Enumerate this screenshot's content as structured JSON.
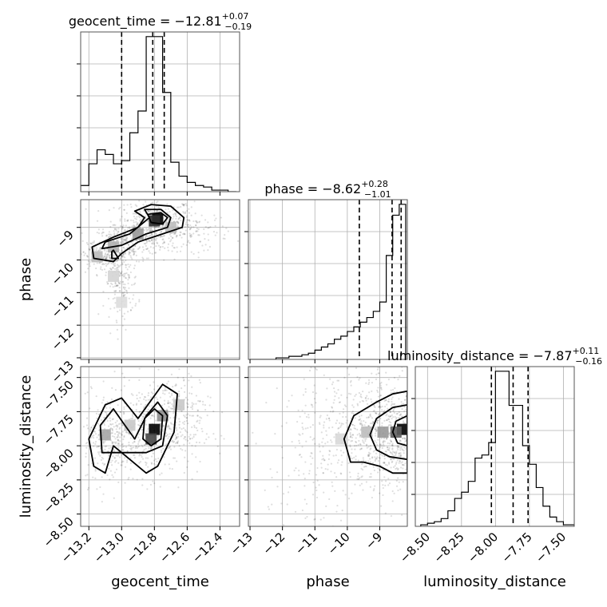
{
  "chart_data": {
    "type": "corner",
    "parameters": [
      "geocent_time",
      "phase",
      "luminosity_distance"
    ],
    "titles": [
      {
        "param": "geocent_time",
        "median": "−12.81",
        "plus": "+0.07",
        "minus": "−0.19"
      },
      {
        "param": "phase",
        "median": "−8.62",
        "plus": "+0.28",
        "minus": "−1.01"
      },
      {
        "param": "luminosity_distance",
        "median": "−7.87",
        "plus": "+0.11",
        "minus": "−0.16"
      }
    ],
    "ranges": {
      "geocent_time": [
        -13.25,
        -12.28
      ],
      "phase": [
        -13.05,
        -8.15
      ],
      "luminosity_distance": [
        -8.59,
        -7.42
      ]
    },
    "ticks": {
      "geocent_time": [
        "−13.2",
        "−13.0",
        "−12.8",
        "−12.6",
        "−12.4"
      ],
      "geocent_time_values": [
        -13.2,
        -13.0,
        -12.8,
        -12.6,
        -12.4
      ],
      "phase": [
        "−13",
        "−12",
        "−11",
        "−10",
        "−9"
      ],
      "phase_values": [
        -13,
        -12,
        -11,
        -10,
        -9
      ],
      "luminosity_distance": [
        "−8.50",
        "−8.25",
        "−8.00",
        "−7.75",
        "−7.50"
      ],
      "luminosity_distance_values": [
        -8.5,
        -8.25,
        -8.0,
        -7.75,
        -7.5
      ]
    },
    "quantile_lines": {
      "geocent_time": [
        -13.0,
        -12.81,
        -12.74
      ],
      "phase": [
        -9.63,
        -8.62,
        -8.34
      ],
      "luminosity_distance": [
        -8.03,
        -7.87,
        -7.76
      ]
    },
    "hist_1d": {
      "geocent_time": {
        "edges": [
          -13.25,
          -13.2,
          -13.15,
          -13.1,
          -13.05,
          -13.0,
          -12.95,
          -12.9,
          -12.85,
          -12.8,
          -12.75,
          -12.7,
          -12.65,
          -12.6,
          -12.55,
          -12.5,
          -12.45,
          -12.4,
          -12.35,
          -12.3
        ],
        "counts": [
          4,
          18,
          27,
          24,
          18,
          20,
          38,
          52,
          100,
          100,
          64,
          19,
          10,
          6,
          4,
          3,
          1,
          1,
          0
        ]
      },
      "phase": {
        "edges": [
          -13.0,
          -12.8,
          -12.6,
          -12.4,
          -12.2,
          -12.0,
          -11.8,
          -11.6,
          -11.4,
          -11.2,
          -11.0,
          -10.8,
          -10.6,
          -10.4,
          -10.2,
          -10.0,
          -9.8,
          -9.6,
          -9.4,
          -9.2,
          -9.0,
          -8.8,
          -8.6,
          -8.4,
          -8.2
        ],
        "counts": [
          0,
          0,
          0,
          0,
          1,
          1,
          2,
          2,
          3,
          4,
          6,
          8,
          10,
          13,
          15,
          18,
          21,
          24,
          27,
          31,
          37,
          67,
          93,
          100
        ]
      },
      "luminosity_distance": {
        "edges": [
          -8.55,
          -8.5,
          -8.45,
          -8.4,
          -8.35,
          -8.3,
          -8.25,
          -8.2,
          -8.15,
          -8.1,
          -8.05,
          -8.0,
          -7.95,
          -7.9,
          -7.85,
          -7.8,
          -7.75,
          -7.7,
          -7.65,
          -7.6,
          -7.55,
          -7.5,
          -7.45,
          -7.42
        ],
        "counts": [
          1,
          2,
          3,
          5,
          10,
          18,
          22,
          29,
          44,
          46,
          54,
          100,
          100,
          78,
          78,
          52,
          40,
          25,
          13,
          6,
          3,
          1,
          1
        ]
      }
    },
    "density_2d": {
      "phase_vs_geocent_time": [
        {
          "x": -12.78,
          "y": -8.75,
          "w": 1.0
        },
        {
          "x": -12.8,
          "y": -8.8,
          "w": 0.8
        },
        {
          "x": -12.9,
          "y": -9.2,
          "w": 0.35
        },
        {
          "x": -13.05,
          "y": -9.6,
          "w": 0.25
        },
        {
          "x": -13.15,
          "y": -9.9,
          "w": 0.2
        },
        {
          "x": -13.05,
          "y": -10.5,
          "w": 0.1
        },
        {
          "x": -13.0,
          "y": -11.3,
          "w": 0.06
        },
        {
          "x": -12.7,
          "y": -9.0,
          "w": 0.2
        }
      ],
      "luminosity_distance_vs_geocent_time": [
        {
          "x": -12.8,
          "y": -7.88,
          "w": 1.0
        },
        {
          "x": -12.82,
          "y": -7.95,
          "w": 0.7
        },
        {
          "x": -12.75,
          "y": -7.78,
          "w": 0.4
        },
        {
          "x": -13.1,
          "y": -7.92,
          "w": 0.3
        },
        {
          "x": -12.95,
          "y": -7.85,
          "w": 0.15
        },
        {
          "x": -12.65,
          "y": -7.7,
          "w": 0.15
        }
      ],
      "luminosity_distance_vs_phase": [
        {
          "x": -8.3,
          "y": -7.88,
          "w": 1.0
        },
        {
          "x": -8.5,
          "y": -7.9,
          "w": 0.6
        },
        {
          "x": -8.9,
          "y": -7.9,
          "w": 0.35
        },
        {
          "x": -9.4,
          "y": -7.9,
          "w": 0.2
        },
        {
          "x": -10.2,
          "y": -7.95,
          "w": 0.08
        }
      ]
    },
    "contours_2d": {
      "phase_vs_geocent_time": [
        [
          [
            -12.92,
            -8.5
          ],
          [
            -12.86,
            -8.7
          ],
          [
            -12.9,
            -9.0
          ],
          [
            -13.05,
            -9.3
          ],
          [
            -13.18,
            -9.6
          ],
          [
            -13.17,
            -9.95
          ],
          [
            -13.05,
            -10.05
          ],
          [
            -13.0,
            -9.8
          ],
          [
            -12.9,
            -9.45
          ],
          [
            -12.75,
            -9.2
          ],
          [
            -12.63,
            -9.0
          ],
          [
            -12.62,
            -8.7
          ],
          [
            -12.7,
            -8.35
          ],
          [
            -12.82,
            -8.3
          ]
        ],
        [
          [
            -12.86,
            -8.45
          ],
          [
            -12.83,
            -8.7
          ],
          [
            -12.95,
            -9.2
          ],
          [
            -13.1,
            -9.45
          ],
          [
            -13.12,
            -9.65
          ],
          [
            -13.0,
            -9.55
          ],
          [
            -12.85,
            -9.2
          ],
          [
            -12.72,
            -9.0
          ],
          [
            -12.7,
            -8.7
          ],
          [
            -12.76,
            -8.45
          ]
        ],
        [
          [
            -12.84,
            -8.6
          ],
          [
            -12.82,
            -8.85
          ],
          [
            -12.75,
            -8.9
          ],
          [
            -12.72,
            -8.7
          ],
          [
            -12.76,
            -8.55
          ]
        ],
        [
          [
            -13.05,
            -9.7
          ],
          [
            -13.02,
            -9.95
          ],
          [
            -13.06,
            -9.95
          ],
          [
            -13.06,
            -9.75
          ]
        ]
      ],
      "luminosity_distance_vs_geocent_time": [
        [
          [
            -13.17,
            -8.15
          ],
          [
            -13.2,
            -7.95
          ],
          [
            -13.1,
            -7.7
          ],
          [
            -13.0,
            -7.65
          ],
          [
            -12.9,
            -7.8
          ],
          [
            -12.75,
            -7.55
          ],
          [
            -12.66,
            -7.62
          ],
          [
            -12.68,
            -7.9
          ],
          [
            -12.78,
            -8.15
          ],
          [
            -12.85,
            -8.2
          ],
          [
            -12.95,
            -8.1
          ],
          [
            -13.05,
            -8.0
          ],
          [
            -13.1,
            -8.2
          ]
        ],
        [
          [
            -13.12,
            -8.05
          ],
          [
            -13.13,
            -7.85
          ],
          [
            -13.05,
            -7.73
          ],
          [
            -12.98,
            -7.85
          ],
          [
            -12.92,
            -7.95
          ],
          [
            -12.85,
            -7.78
          ],
          [
            -12.78,
            -7.68
          ],
          [
            -12.72,
            -7.78
          ],
          [
            -12.75,
            -8.0
          ],
          [
            -12.85,
            -8.05
          ]
        ],
        [
          [
            -12.87,
            -7.95
          ],
          [
            -12.86,
            -7.8
          ],
          [
            -12.8,
            -7.73
          ],
          [
            -12.75,
            -7.78
          ],
          [
            -12.76,
            -7.95
          ],
          [
            -12.82,
            -8.0
          ]
        ]
      ],
      "luminosity_distance_vs_phase": [
        [
          [
            -8.15,
            -7.6
          ],
          [
            -8.6,
            -7.62
          ],
          [
            -9.1,
            -7.68
          ],
          [
            -9.8,
            -7.78
          ],
          [
            -10.1,
            -7.95
          ],
          [
            -9.9,
            -8.12
          ],
          [
            -9.5,
            -8.12
          ],
          [
            -9.0,
            -8.15
          ],
          [
            -8.6,
            -8.2
          ],
          [
            -8.15,
            -8.2
          ]
        ],
        [
          [
            -8.15,
            -7.7
          ],
          [
            -8.6,
            -7.72
          ],
          [
            -9.1,
            -7.8
          ],
          [
            -9.3,
            -7.92
          ],
          [
            -9.1,
            -8.03
          ],
          [
            -8.7,
            -8.08
          ],
          [
            -8.15,
            -8.1
          ]
        ],
        [
          [
            -8.15,
            -7.78
          ],
          [
            -8.5,
            -7.82
          ],
          [
            -8.6,
            -7.9
          ],
          [
            -8.45,
            -7.98
          ],
          [
            -8.15,
            -8.0
          ]
        ]
      ]
    },
    "scatter_clouds": {
      "phase_vs_geocent_time": [
        {
          "cx": -12.8,
          "cy": -8.9,
          "sx": 0.12,
          "sy": 0.4,
          "n": 500
        },
        {
          "cx": -12.98,
          "cy": -9.5,
          "sx": 0.1,
          "sy": 0.3,
          "n": 220
        },
        {
          "cx": -13.12,
          "cy": -9.9,
          "sx": 0.07,
          "sy": 0.25,
          "n": 180
        },
        {
          "cx": -13.0,
          "cy": -10.7,
          "sx": 0.05,
          "sy": 0.55,
          "n": 170
        },
        {
          "cx": -12.55,
          "cy": -9.1,
          "sx": 0.1,
          "sy": 0.3,
          "n": 100
        }
      ],
      "luminosity_distance_vs_geocent_time": [
        {
          "cx": -12.82,
          "cy": -7.88,
          "sx": 0.15,
          "sy": 0.17,
          "n": 500
        },
        {
          "cx": -13.07,
          "cy": -7.95,
          "sx": 0.08,
          "sy": 0.17,
          "n": 250
        },
        {
          "cx": -12.65,
          "cy": -7.75,
          "sx": 0.1,
          "sy": 0.15,
          "n": 120
        }
      ],
      "luminosity_distance_vs_phase": [
        {
          "cx": -8.7,
          "cy": -7.9,
          "sx": 0.6,
          "sy": 0.2,
          "n": 600
        },
        {
          "cx": -9.8,
          "cy": -7.95,
          "sx": 0.9,
          "sy": 0.25,
          "n": 300
        },
        {
          "cx": -11.0,
          "cy": -8.0,
          "sx": 1.0,
          "sy": 0.3,
          "n": 140
        }
      ]
    },
    "grid": true
  }
}
